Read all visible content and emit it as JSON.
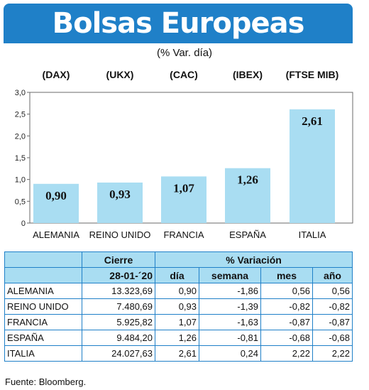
{
  "header": {
    "title": "Bolsas Europeas",
    "subtitle": "(% Var. día)"
  },
  "chart_data": {
    "type": "bar",
    "title": "Bolsas Europeas",
    "subtitle": "(% Var. día)",
    "categories": [
      "ALEMANIA",
      "REINO UNIDO",
      "FRANCIA",
      "ESPAÑA",
      "ITALIA"
    ],
    "indices": [
      "(DAX)",
      "(UKX)",
      "(CAC)",
      "(IBEX)",
      "(FTSE MIB)"
    ],
    "values": [
      0.9,
      0.93,
      1.07,
      1.26,
      2.61
    ],
    "value_labels": [
      "0,90",
      "0,93",
      "1,07",
      "1,26",
      "2,61"
    ],
    "yticks": [
      "0",
      "0,5",
      "1,0",
      "1,5",
      "2,0",
      "2,5",
      "3,0"
    ],
    "ylim": [
      0,
      3.0
    ],
    "bar_color": "#a9ddf2",
    "grid": false
  },
  "table": {
    "headers": {
      "cierre": "Cierre",
      "date": "28-01-´20",
      "variacion": "% Variación",
      "dia": "día",
      "semana": "semana",
      "mes": "mes",
      "ano": "año"
    },
    "rows": [
      {
        "pais": "ALEMANIA",
        "cierre": "13.323,69",
        "dia": "0,90",
        "semana": "-1,86",
        "mes": "0,56",
        "ano": "0,56"
      },
      {
        "pais": "REINO UNIDO",
        "cierre": "7.480,69",
        "dia": "0,93",
        "semana": "-1,39",
        "mes": "-0,82",
        "ano": "-0,82"
      },
      {
        "pais": "FRANCIA",
        "cierre": "5.925,82",
        "dia": "1,07",
        "semana": "-1,63",
        "mes": "-0,87",
        "ano": "-0,87"
      },
      {
        "pais": "ESPAÑA",
        "cierre": "9.484,20",
        "dia": "1,26",
        "semana": "-0,81",
        "mes": "-0,68",
        "ano": "-0,68"
      },
      {
        "pais": "ITALIA",
        "cierre": "24.027,63",
        "dia": "2,61",
        "semana": "0,24",
        "mes": "2,22",
        "ano": "2,22"
      }
    ]
  },
  "source": "Fuente: Bloomberg.",
  "colors": {
    "banner": "#1f80c8",
    "bar": "#a9ddf2",
    "table_header": "#a9ddf2",
    "table_border": "#1f80c8"
  }
}
